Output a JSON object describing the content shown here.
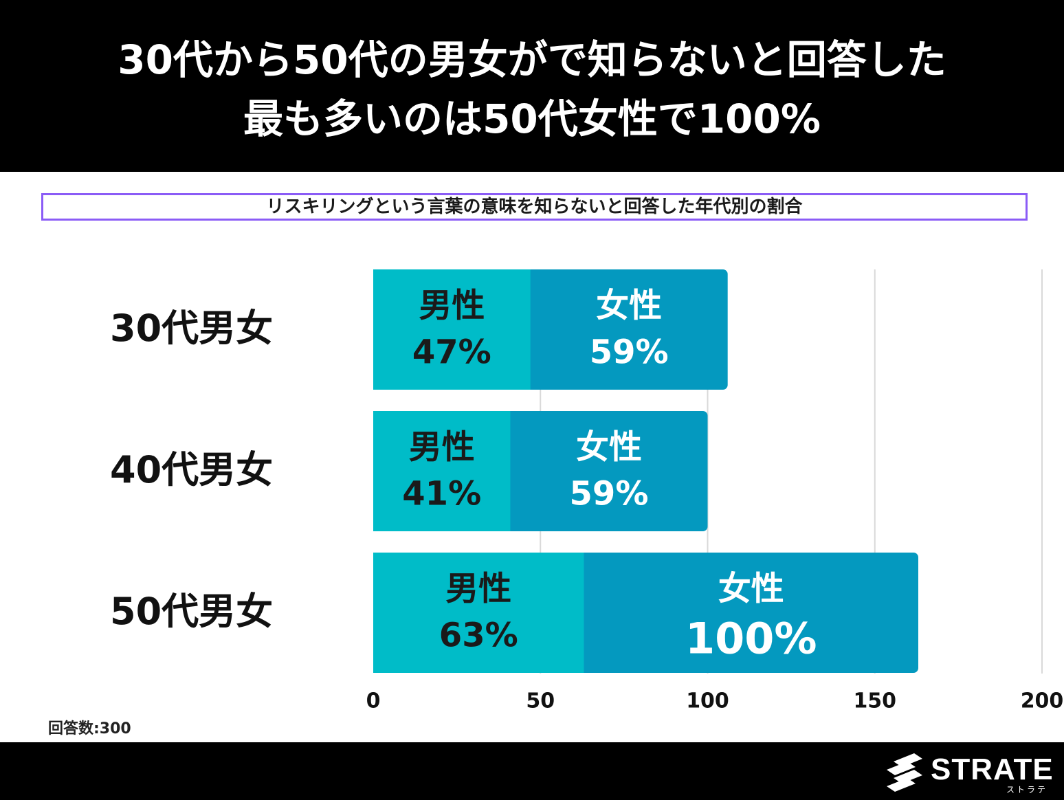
{
  "header": {
    "line1": "30代から50代の男女がで知らないと回答した",
    "line2": "最も多いのは50代女性で100%"
  },
  "colors": {
    "male": "#00bcc8",
    "female": "#0499bf",
    "grid": "#d9d9d9",
    "subtitle_border": "#8b5cf6"
  },
  "chart_data": {
    "type": "bar",
    "orientation": "horizontal",
    "stacked": true,
    "title": "リスキリングという言葉の意味を知らないと回答した年代別の割合",
    "categories": [
      "30代男女",
      "40代男女",
      "50代男女"
    ],
    "series": [
      {
        "name": "男性",
        "values": [
          47,
          41,
          63
        ],
        "labels": [
          "47%",
          "41%",
          "63%"
        ]
      },
      {
        "name": "女性",
        "values": [
          59,
          59,
          100
        ],
        "labels": [
          "59%",
          "59%",
          "100%"
        ]
      }
    ],
    "xlim": [
      0,
      200
    ],
    "xticks": [
      "0",
      "50",
      "100",
      "150",
      "200"
    ],
    "xlabel": "",
    "ylabel": "",
    "grid": true
  },
  "footer": {
    "sample_size": "回答数:300",
    "logo_text": "STRATE",
    "logo_kana": "ストラテ"
  }
}
